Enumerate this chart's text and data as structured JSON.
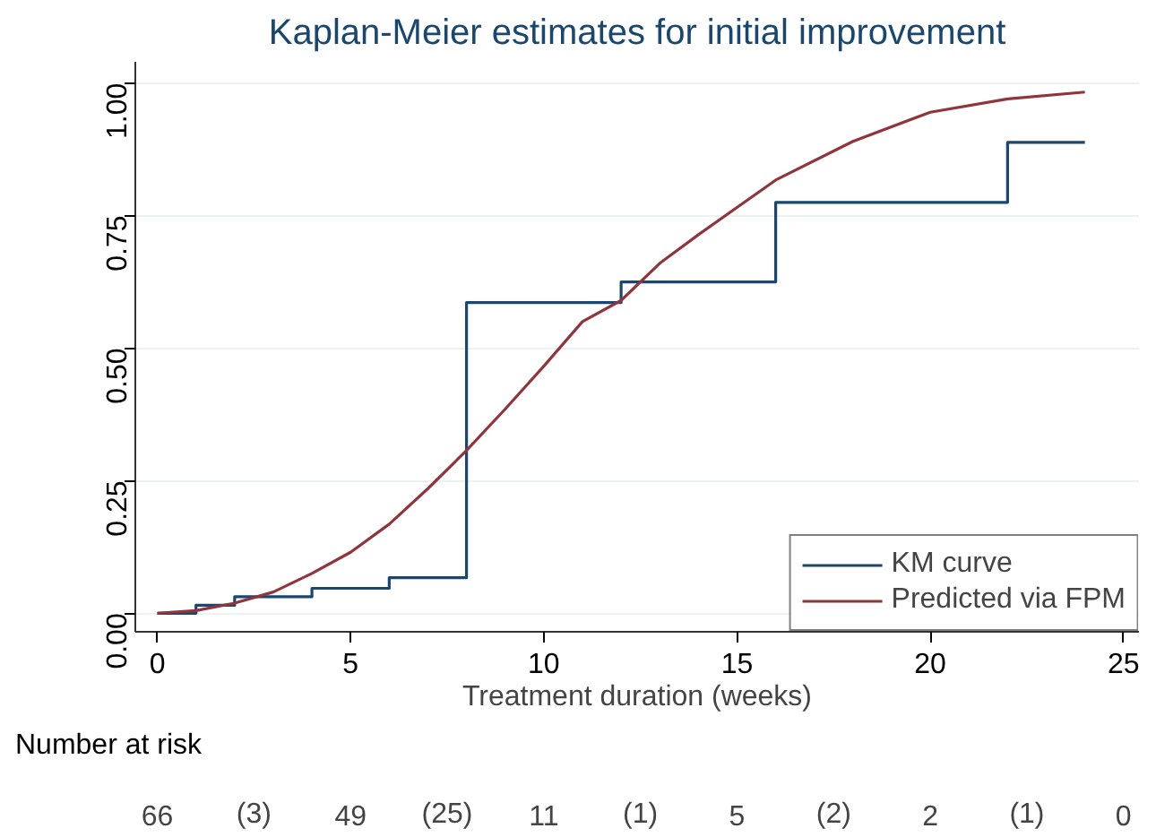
{
  "chart_data": {
    "type": "line",
    "title": "Kaplan-Meier estimates for initial improvement",
    "xlabel": "Treatment duration (weeks)",
    "series": [
      {
        "name": "KM curve",
        "type": "step",
        "color": "#1a476f",
        "x": [
          0,
          1,
          2,
          4,
          6,
          8,
          12,
          16,
          22,
          24
        ],
        "values": [
          0,
          0.015,
          0.031,
          0.047,
          0.067,
          0.586,
          0.625,
          0.775,
          0.888,
          0.888
        ]
      },
      {
        "name": "Predicted via FPM",
        "type": "line",
        "color": "#90353b",
        "x": [
          0,
          1,
          2,
          3,
          4,
          5,
          6,
          7,
          8,
          9,
          10,
          11,
          12,
          13,
          14,
          16,
          18,
          20,
          22,
          24
        ],
        "values": [
          0,
          0.005,
          0.019,
          0.04,
          0.075,
          0.115,
          0.168,
          0.235,
          0.307,
          0.385,
          0.466,
          0.55,
          0.59,
          0.66,
          0.714,
          0.817,
          0.89,
          0.945,
          0.97,
          0.983
        ]
      }
    ],
    "xlim": [
      -0.57,
      25.4
    ],
    "ylim": [
      -0.035,
      1.04
    ],
    "xticks": [
      0,
      5,
      10,
      15,
      20,
      25
    ],
    "yticks": [
      {
        "value": 0,
        "label": "0.00"
      },
      {
        "value": 0.25,
        "label": "0.25"
      },
      {
        "value": 0.5,
        "label": "0.50"
      },
      {
        "value": 0.75,
        "label": "0.75"
      },
      {
        "value": 1,
        "label": "1.00"
      }
    ],
    "grid": "y",
    "legend": "bottom right",
    "annotations": [
      "Number at risk",
      "66",
      "(3)",
      "49",
      "(25)",
      "11",
      "(1)",
      "5",
      "(2)",
      "2",
      "(1)",
      "0"
    ]
  }
}
